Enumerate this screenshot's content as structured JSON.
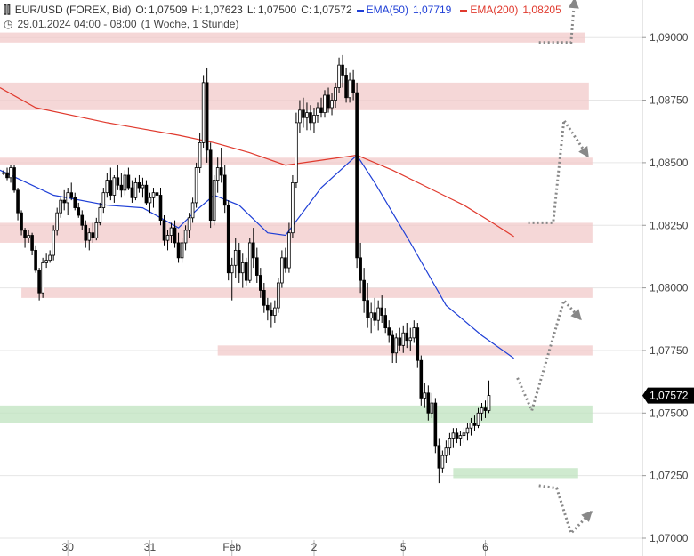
{
  "header": {
    "symbol_line": "EUR/USD (FOREX, Bid)",
    "open_label": "O:",
    "open": "1,07509",
    "high_label": "H:",
    "high": "1,07623",
    "low_label": "L:",
    "low": "1,07500",
    "close_label": "C:",
    "close": "1,07572",
    "ema50_label": "EMA(50)",
    "ema50_value": "1,07719",
    "ema200_label": "EMA(200)",
    "ema200_value": "1,08205",
    "date_range": "29.01.2024 04:00 - 08:00",
    "interval": "(1 Woche, 1 Stunde)"
  },
  "colors": {
    "up_candle": "#ffffff",
    "down_candle": "#000000",
    "ema50": "#1f3fd6",
    "ema200": "#e03a2e",
    "resistance_zone": "#f2c9c9",
    "support_zone": "#bfe3bf",
    "projection": "#888888",
    "last_price_bg": "#000000"
  },
  "last_price_label": "1,07572",
  "chart_data": {
    "type": "candlestick",
    "title": "",
    "y_axis": {
      "side": "right",
      "ylim": [
        1.07,
        1.0915
      ],
      "ticks": [
        {
          "value": 1.09,
          "label": "1,09000"
        },
        {
          "value": 1.0875,
          "label": "1,08750"
        },
        {
          "value": 1.085,
          "label": "1,08500"
        },
        {
          "value": 1.0825,
          "label": "1,08250"
        },
        {
          "value": 1.08,
          "label": "1,08000"
        },
        {
          "value": 1.0775,
          "label": "1,07750"
        },
        {
          "value": 1.075,
          "label": "1,07500"
        },
        {
          "value": 1.0725,
          "label": "1,07250"
        },
        {
          "value": 1.07,
          "label": "1,07000"
        }
      ]
    },
    "x_axis": {
      "xlim": [
        0,
        180
      ],
      "ticks": [
        {
          "value": 19,
          "label": "30"
        },
        {
          "value": 42,
          "label": "31"
        },
        {
          "value": 65,
          "label": "Feb"
        },
        {
          "value": 88,
          "label": "2"
        },
        {
          "value": 113,
          "label": "5"
        },
        {
          "value": 136,
          "label": "6"
        }
      ]
    },
    "grid": "horizontal",
    "legend": "top-left",
    "zones": [
      {
        "type": "resistance",
        "x0": 0,
        "x1": 164,
        "y0": 1.0898,
        "y1": 1.0902
      },
      {
        "type": "resistance",
        "x0": 0,
        "x1": 165,
        "y0": 1.0871,
        "y1": 1.0882
      },
      {
        "type": "resistance",
        "x0": 0,
        "x1": 166,
        "y0": 1.0849,
        "y1": 1.0852
      },
      {
        "type": "resistance",
        "x0": 0,
        "x1": 166,
        "y0": 1.0818,
        "y1": 1.0826
      },
      {
        "type": "resistance",
        "x0": 6,
        "x1": 166,
        "y0": 1.0796,
        "y1": 1.08
      },
      {
        "type": "resistance",
        "x0": 61,
        "x1": 166,
        "y0": 1.0773,
        "y1": 1.0777
      },
      {
        "type": "support",
        "x0": 0,
        "x1": 166,
        "y0": 1.0746,
        "y1": 1.0753
      },
      {
        "type": "support",
        "x0": 127,
        "x1": 162,
        "y0": 1.0724,
        "y1": 1.0728
      }
    ],
    "series": [
      {
        "type": "line",
        "values": [
          [
            0,
            1.0847
          ],
          [
            15,
            1.0837
          ],
          [
            30,
            1.0833
          ],
          [
            40,
            1.0832
          ],
          [
            50,
            1.0824
          ],
          [
            55,
            1.0831
          ],
          [
            60,
            1.0837
          ],
          [
            67,
            1.0833
          ],
          [
            75,
            1.0822
          ],
          [
            80,
            1.0821
          ],
          [
            90,
            1.084
          ],
          [
            100,
            1.0853
          ],
          [
            105,
            1.0842
          ],
          [
            115,
            1.0818
          ],
          [
            125,
            1.0793
          ],
          [
            135,
            1.0781
          ],
          [
            144,
            1.07719
          ]
        ]
      },
      {
        "type": "line",
        "values": [
          [
            0,
            1.088
          ],
          [
            10,
            1.0872
          ],
          [
            30,
            1.0866
          ],
          [
            50,
            1.0861
          ],
          [
            60,
            1.0858
          ],
          [
            70,
            1.0854
          ],
          [
            80,
            1.0849
          ],
          [
            90,
            1.0851
          ],
          [
            100,
            1.0853
          ],
          [
            110,
            1.0847
          ],
          [
            120,
            1.084
          ],
          [
            130,
            1.0833
          ],
          [
            138,
            1.0826
          ],
          [
            144,
            1.08205
          ]
        ]
      }
    ],
    "projections": [
      {
        "points": [
          [
            151,
            1.0898
          ],
          [
            160,
            1.0898
          ],
          [
            161,
            1.0916
          ]
        ]
      },
      {
        "points": [
          [
            148,
            1.0826
          ],
          [
            155,
            1.0826
          ],
          [
            158,
            1.0867
          ],
          [
            165,
            1.0852
          ]
        ]
      },
      {
        "points": [
          [
            145,
            1.0764
          ],
          [
            149,
            1.0751
          ],
          [
            158,
            1.0795
          ],
          [
            163,
            1.0787
          ]
        ]
      },
      {
        "points": [
          [
            151,
            1.0721
          ],
          [
            156,
            1.072
          ],
          [
            160,
            1.0702
          ],
          [
            166,
            1.0711
          ]
        ]
      }
    ],
    "candles": [
      [
        1.0846,
        1.0847,
        1.0845,
        1.0846
      ],
      [
        1.0846,
        1.0848,
        1.0843,
        1.0844
      ],
      [
        1.0844,
        1.0849,
        1.0842,
        1.0848
      ],
      [
        1.0848,
        1.0849,
        1.0838,
        1.0839
      ],
      [
        1.0839,
        1.084,
        1.0827,
        1.083
      ],
      [
        1.083,
        1.0831,
        1.0821,
        1.0823
      ],
      [
        1.0823,
        1.0824,
        1.0816,
        1.082
      ],
      [
        1.082,
        1.0823,
        1.0818,
        1.0821
      ],
      [
        1.0821,
        1.0822,
        1.0813,
        1.0815
      ],
      [
        1.0815,
        1.0817,
        1.0806,
        1.0807
      ],
      [
        1.0807,
        1.0808,
        1.0795,
        1.0798
      ],
      [
        1.0798,
        1.0812,
        1.0796,
        1.081
      ],
      [
        1.081,
        1.0814,
        1.0808,
        1.0811
      ],
      [
        1.0811,
        1.0815,
        1.081,
        1.0813
      ],
      [
        1.0813,
        1.0825,
        1.0811,
        1.0823
      ],
      [
        1.0823,
        1.0832,
        1.0821,
        1.083
      ],
      [
        1.083,
        1.0836,
        1.0828,
        1.0835
      ],
      [
        1.0835,
        1.0839,
        1.0831,
        1.0834
      ],
      [
        1.0834,
        1.084,
        1.0829,
        1.0838
      ],
      [
        1.0838,
        1.0842,
        1.0835,
        1.0836
      ],
      [
        1.0836,
        1.0838,
        1.0831,
        1.0832
      ],
      [
        1.0832,
        1.0834,
        1.0828,
        1.0829
      ],
      [
        1.0829,
        1.0831,
        1.0823,
        1.0825
      ],
      [
        1.0825,
        1.0827,
        1.0816,
        1.0819
      ],
      [
        1.0819,
        1.0824,
        1.0815,
        1.0822
      ],
      [
        1.0822,
        1.0826,
        1.0818,
        1.082
      ],
      [
        1.082,
        1.0828,
        1.0819,
        1.0826
      ],
      [
        1.0826,
        1.0834,
        1.0825,
        1.0832
      ],
      [
        1.0832,
        1.084,
        1.083,
        1.0838
      ],
      [
        1.0838,
        1.0846,
        1.0836,
        1.0843
      ],
      [
        1.0843,
        1.0848,
        1.0835,
        1.0837
      ],
      [
        1.0837,
        1.0845,
        1.0834,
        1.0844
      ],
      [
        1.0844,
        1.0849,
        1.0839,
        1.0841
      ],
      [
        1.0841,
        1.0846,
        1.0836,
        1.0839
      ],
      [
        1.0839,
        1.0847,
        1.0837,
        1.0845
      ],
      [
        1.0845,
        1.0848,
        1.0839,
        1.084
      ],
      [
        1.084,
        1.0843,
        1.0834,
        1.0836
      ],
      [
        1.0836,
        1.0844,
        1.0835,
        1.0842
      ],
      [
        1.0842,
        1.0845,
        1.0838,
        1.084
      ],
      [
        1.084,
        1.0844,
        1.0836,
        1.0841
      ],
      [
        1.0841,
        1.0843,
        1.0833,
        1.0834
      ],
      [
        1.0834,
        1.0838,
        1.083,
        1.0836
      ],
      [
        1.0836,
        1.084,
        1.0832,
        1.0838
      ],
      [
        1.0838,
        1.0842,
        1.0834,
        1.0837
      ],
      [
        1.0837,
        1.084,
        1.0825,
        1.0827
      ],
      [
        1.0827,
        1.0829,
        1.0817,
        1.0819
      ],
      [
        1.0819,
        1.0823,
        1.0815,
        1.0821
      ],
      [
        1.0821,
        1.0826,
        1.0818,
        1.0824
      ],
      [
        1.0824,
        1.0827,
        1.0816,
        1.0818
      ],
      [
        1.0818,
        1.0822,
        1.081,
        1.0812
      ],
      [
        1.0812,
        1.082,
        1.081,
        1.0818
      ],
      [
        1.0818,
        1.0825,
        1.0815,
        1.0823
      ],
      [
        1.0823,
        1.083,
        1.082,
        1.0828
      ],
      [
        1.0828,
        1.0836,
        1.0826,
        1.0834
      ],
      [
        1.0834,
        1.085,
        1.0832,
        1.0848
      ],
      [
        1.0848,
        1.0862,
        1.0846,
        1.0858
      ],
      [
        1.0858,
        1.0885,
        1.0856,
        1.0882
      ],
      [
        1.0882,
        1.0888,
        1.085,
        1.0855
      ],
      [
        1.0855,
        1.0858,
        1.0824,
        1.0827
      ],
      [
        1.0827,
        1.0845,
        1.0825,
        1.0843
      ],
      [
        1.0843,
        1.0852,
        1.0838,
        1.0848
      ],
      [
        1.0848,
        1.0856,
        1.0842,
        1.0845
      ],
      [
        1.0845,
        1.0849,
        1.083,
        1.0833
      ],
      [
        1.0833,
        1.0835,
        1.0803,
        1.0806
      ],
      [
        1.0806,
        1.0812,
        1.0795,
        1.0809
      ],
      [
        1.0809,
        1.082,
        1.0804,
        1.0815
      ],
      [
        1.0815,
        1.0818,
        1.0802,
        1.0806
      ],
      [
        1.0806,
        1.0814,
        1.08,
        1.081
      ],
      [
        1.081,
        1.0812,
        1.0801,
        1.0803
      ],
      [
        1.0803,
        1.082,
        1.0802,
        1.0818
      ],
      [
        1.0818,
        1.0824,
        1.0808,
        1.0812
      ],
      [
        1.0812,
        1.0816,
        1.0802,
        1.0805
      ],
      [
        1.0805,
        1.0808,
        1.0796,
        1.0799
      ],
      [
        1.0799,
        1.0802,
        1.079,
        1.0793
      ],
      [
        1.0793,
        1.0796,
        1.0787,
        1.0791
      ],
      [
        1.0791,
        1.0794,
        1.0784,
        1.0789
      ],
      [
        1.0789,
        1.0795,
        1.0786,
        1.0792
      ],
      [
        1.0792,
        1.0804,
        1.079,
        1.0802
      ],
      [
        1.0802,
        1.0815,
        1.08,
        1.0812
      ],
      [
        1.0812,
        1.0816,
        1.0806,
        1.0808
      ],
      [
        1.0808,
        1.0826,
        1.0806,
        1.0822
      ],
      [
        1.0822,
        1.0845,
        1.082,
        1.0842
      ],
      [
        1.0842,
        1.087,
        1.084,
        1.0866
      ],
      [
        1.0866,
        1.0875,
        1.0862,
        1.0871
      ],
      [
        1.0871,
        1.0876,
        1.0864,
        1.0868
      ],
      [
        1.0868,
        1.0874,
        1.0863,
        1.087
      ],
      [
        1.087,
        1.0873,
        1.0863,
        1.0866
      ],
      [
        1.0866,
        1.0872,
        1.0862,
        1.0869
      ],
      [
        1.0869,
        1.0874,
        1.0866,
        1.0872
      ],
      [
        1.0872,
        1.0876,
        1.0868,
        1.087
      ],
      [
        1.087,
        1.0879,
        1.0868,
        1.0877
      ],
      [
        1.0877,
        1.088,
        1.087,
        1.0872
      ],
      [
        1.0872,
        1.0878,
        1.0869,
        1.0875
      ],
      [
        1.0875,
        1.0882,
        1.0872,
        1.088
      ],
      [
        1.088,
        1.0892,
        1.0878,
        1.0889
      ],
      [
        1.0889,
        1.0893,
        1.088,
        1.0885
      ],
      [
        1.0885,
        1.0888,
        1.0874,
        1.0876
      ],
      [
        1.0876,
        1.0886,
        1.0874,
        1.0883
      ],
      [
        1.0883,
        1.0887,
        1.0875,
        1.0878
      ],
      [
        1.0878,
        1.0882,
        1.0808,
        1.0812
      ],
      [
        1.0812,
        1.0818,
        1.0798,
        1.0803
      ],
      [
        1.0803,
        1.0808,
        1.079,
        1.0795
      ],
      [
        1.0795,
        1.0802,
        1.0784,
        1.0788
      ],
      [
        1.0788,
        1.0794,
        1.0782,
        1.079
      ],
      [
        1.079,
        1.0796,
        1.0785,
        1.0787
      ],
      [
        1.0787,
        1.0795,
        1.0783,
        1.0792
      ],
      [
        1.0792,
        1.0797,
        1.0786,
        1.0789
      ],
      [
        1.0789,
        1.0792,
        1.0782,
        1.0784
      ],
      [
        1.0784,
        1.0787,
        1.0778,
        1.0781
      ],
      [
        1.0781,
        1.0783,
        1.077,
        1.0774
      ],
      [
        1.0774,
        1.0782,
        1.077,
        1.078
      ],
      [
        1.078,
        1.0784,
        1.0775,
        1.0777
      ],
      [
        1.0777,
        1.0785,
        1.0774,
        1.0782
      ],
      [
        1.0782,
        1.0786,
        1.0776,
        1.0779
      ],
      [
        1.0779,
        1.0784,
        1.0775,
        1.078
      ],
      [
        1.078,
        1.0787,
        1.0778,
        1.0784
      ],
      [
        1.0784,
        1.0786,
        1.0768,
        1.0771
      ],
      [
        1.0771,
        1.0773,
        1.0753,
        1.0756
      ],
      [
        1.0756,
        1.0762,
        1.0752,
        1.0758
      ],
      [
        1.0758,
        1.0761,
        1.0747,
        1.075
      ],
      [
        1.075,
        1.0758,
        1.0748,
        1.0754
      ],
      [
        1.0754,
        1.0756,
        1.0734,
        1.0737
      ],
      [
        1.0737,
        1.074,
        1.0722,
        1.0728
      ],
      [
        1.0728,
        1.0735,
        1.0726,
        1.0733
      ],
      [
        1.0733,
        1.0739,
        1.073,
        1.0736
      ],
      [
        1.0736,
        1.0742,
        1.0733,
        1.074
      ],
      [
        1.074,
        1.0744,
        1.0736,
        1.0742
      ],
      [
        1.0742,
        1.0744,
        1.0738,
        1.074
      ],
      [
        1.074,
        1.0743,
        1.0737,
        1.0741
      ],
      [
        1.0741,
        1.0744,
        1.0738,
        1.0742
      ],
      [
        1.0742,
        1.0746,
        1.0739,
        1.0744
      ],
      [
        1.0744,
        1.0748,
        1.0741,
        1.0746
      ],
      [
        1.0746,
        1.0749,
        1.0743,
        1.0745
      ],
      [
        1.0745,
        1.0752,
        1.0744,
        1.075
      ],
      [
        1.075,
        1.0754,
        1.0747,
        1.0752
      ],
      [
        1.0752,
        1.0755,
        1.0748,
        1.0751
      ],
      [
        1.0751,
        1.0763,
        1.075,
        1.0757
      ]
    ]
  }
}
